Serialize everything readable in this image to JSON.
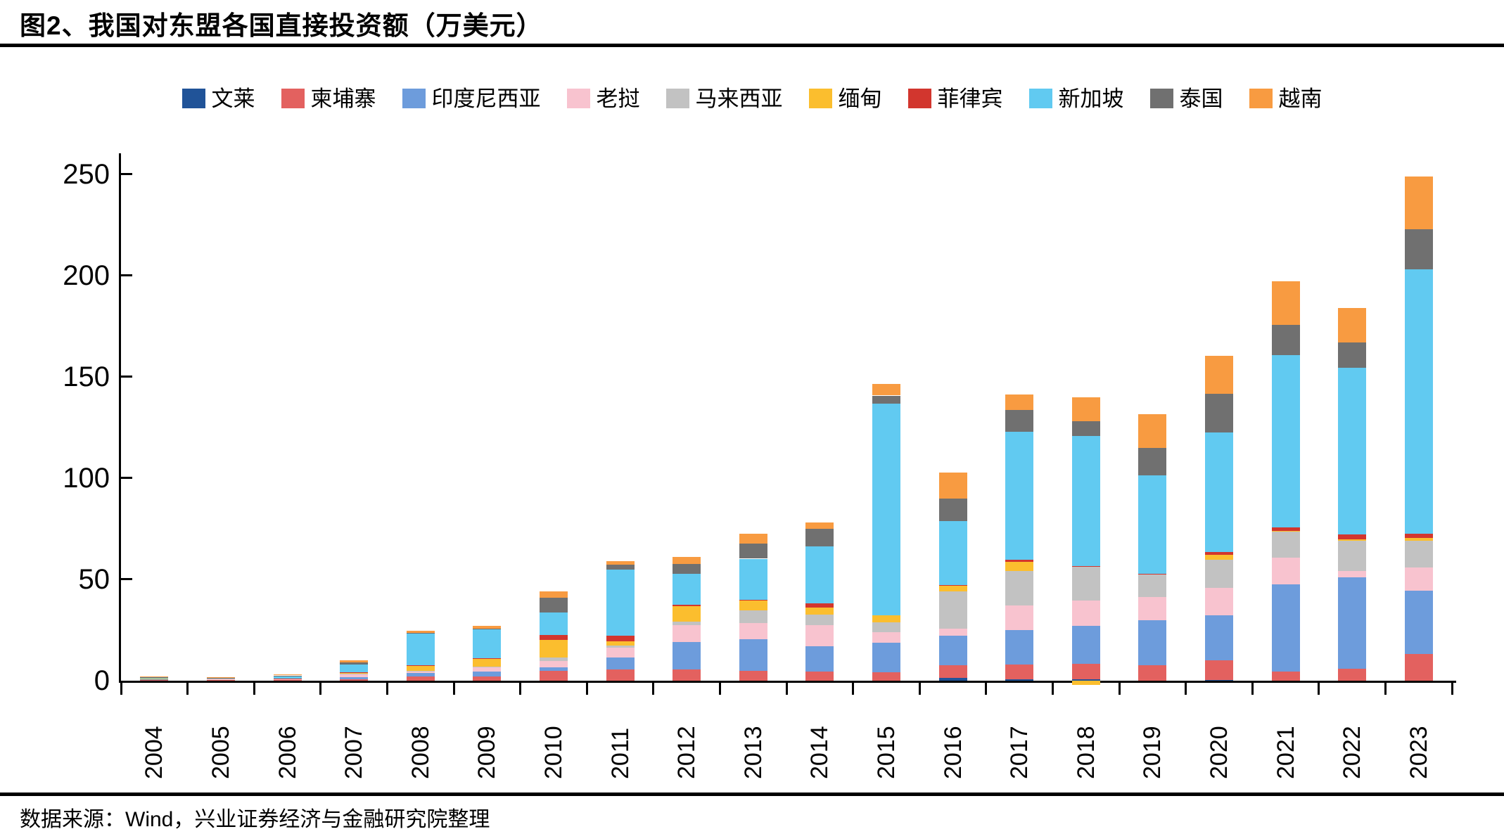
{
  "title": "图2、我国对东盟各国直接投资额（万美元）",
  "footer": "数据来源：Wind，兴业证券经济与金融研究院整理",
  "chart_data": {
    "type": "bar",
    "stacked": true,
    "title": "图2、我国对东盟各国直接投资额（万美元）",
    "xlabel": "",
    "ylabel": "",
    "unit": "万美元",
    "ylim": [
      0,
      250
    ],
    "yticks": [
      0,
      50,
      100,
      150,
      200,
      250
    ],
    "grid": false,
    "legend_position": "top",
    "categories": [
      "2004",
      "2005",
      "2006",
      "2007",
      "2008",
      "2009",
      "2010",
      "2011",
      "2012",
      "2013",
      "2014",
      "2015",
      "2016",
      "2017",
      "2018",
      "2019",
      "2020",
      "2021",
      "2022",
      "2023"
    ],
    "series": [
      {
        "name": "文莱",
        "color": "#205398",
        "values": [
          0,
          0,
          0,
          0,
          0,
          0,
          0,
          0,
          0,
          0,
          0,
          0,
          1.4,
          0.7,
          0.6,
          0,
          0.5,
          0,
          0,
          0
        ]
      },
      {
        "name": "柬埔寨",
        "color": "#E3615F",
        "values": [
          0.3,
          0.5,
          0.3,
          0.6,
          2.1,
          2.2,
          4.7,
          5.7,
          5.6,
          5.0,
          4.4,
          4.2,
          6.3,
          7.4,
          7.8,
          7.5,
          9.6,
          4.6,
          6.0,
          13.2
        ]
      },
      {
        "name": "印度尼西亚",
        "color": "#6D9CDC",
        "values": [
          0.6,
          0.1,
          0.3,
          1.0,
          1.7,
          2.3,
          2.0,
          5.9,
          13.6,
          15.6,
          12.7,
          14.5,
          14.6,
          16.8,
          18.7,
          22.2,
          22.0,
          43.1,
          45.1,
          31.2
        ]
      },
      {
        "name": "老挝",
        "color": "#F8C3CF",
        "values": [
          0.05,
          0.2,
          0.2,
          1.5,
          0.9,
          2.0,
          3.1,
          4.6,
          8.1,
          7.8,
          10.3,
          5.2,
          3.3,
          12.2,
          12.4,
          11.5,
          13.8,
          13.0,
          2.9,
          11.5
        ]
      },
      {
        "name": "马来西亚",
        "color": "#C2C2C2",
        "values": [
          0.1,
          0.35,
          0.2,
          0.2,
          0.3,
          0.5,
          1.6,
          1.0,
          2.0,
          6.2,
          5.2,
          4.9,
          18.3,
          17.2,
          16.6,
          11.1,
          13.7,
          12.7,
          15.0,
          13.2
        ]
      },
      {
        "name": "缅甸",
        "color": "#FBBE2E",
        "values": [
          0.05,
          0.1,
          0.1,
          0.9,
          2.3,
          3.8,
          8.8,
          2.2,
          7.5,
          4.8,
          3.4,
          3.3,
          2.9,
          4.3,
          -2.1,
          0.3,
          2.5,
          0.5,
          0.8,
          1.4
        ]
      },
      {
        "name": "菲律宾",
        "color": "#D2362E",
        "values": [
          0,
          0,
          0.1,
          0.1,
          0.3,
          0.4,
          2.4,
          2.7,
          0.8,
          0.5,
          2.3,
          0,
          0.3,
          1.1,
          0.6,
          0.3,
          1.3,
          1.7,
          2.4,
          2.1
        ]
      },
      {
        "name": "新加坡",
        "color": "#61CAF1",
        "values": [
          0.5,
          0.2,
          1.3,
          3.8,
          15.5,
          14.1,
          11.2,
          32.7,
          15.2,
          20.3,
          28.1,
          104.5,
          31.7,
          63.2,
          64.1,
          48.3,
          59.2,
          85.0,
          82.3,
          130.5
        ]
      },
      {
        "name": "泰国",
        "color": "#707070",
        "values": [
          0.25,
          0.05,
          0.1,
          0.8,
          0.5,
          0.5,
          7.0,
          2.3,
          4.8,
          7.6,
          8.4,
          4.1,
          11.2,
          10.6,
          7.4,
          13.7,
          18.8,
          15.0,
          12.5,
          19.8
        ]
      },
      {
        "name": "越南",
        "color": "#F89B41",
        "values": [
          0.15,
          0.2,
          0.4,
          1.0,
          1.2,
          1.1,
          3.1,
          1.9,
          3.5,
          4.8,
          3.3,
          5.6,
          12.8,
          7.6,
          11.5,
          16.5,
          18.9,
          21.5,
          17.0,
          26.0
        ]
      }
    ]
  }
}
